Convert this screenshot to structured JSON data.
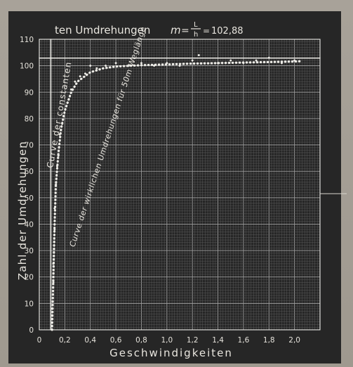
{
  "chart_data": {
    "type": "line",
    "title_prefix": "ten Umdrehungen",
    "formula": {
      "lhs": "m",
      "numerator": "L",
      "denominator": "h",
      "rhs": "102,88"
    },
    "xlabel": "Geschwindigkeiten",
    "ylabel": "Zahl der Umdrehungen",
    "xlim": [
      0,
      2.2
    ],
    "ylim": [
      0,
      110
    ],
    "grid": true,
    "x_tick_labels": [
      "0",
      "0,2",
      "0,4",
      "0,6",
      "0,8",
      "1,0",
      "1,2",
      "1,4",
      "1,6",
      "1,8",
      "2,0"
    ],
    "y_tick_labels": [
      "0",
      "10",
      "20",
      "30",
      "40",
      "50",
      "60",
      "70",
      "80",
      "90",
      "100",
      "110"
    ],
    "annotations": [
      "Curve der constanten",
      "Curve der wirklichen Umdrehungen für 50m Weglänge"
    ],
    "series": [
      {
        "x": [
          0.09,
          0.09,
          0.09
        ],
        "y": [
          0,
          60,
          110
        ]
      },
      {
        "x": [
          0.1,
          0.11,
          0.12,
          0.13,
          0.15,
          0.17,
          0.2,
          0.25,
          0.3,
          0.4,
          0.5,
          0.6,
          0.8,
          1.0,
          1.2,
          1.4,
          1.6,
          1.8,
          2.0,
          2.05
        ],
        "y": [
          0,
          20,
          40,
          55,
          67,
          76,
          83,
          90,
          94,
          97.5,
          99,
          99.7,
          100.2,
          100.5,
          100.8,
          101,
          101.2,
          101.4,
          101.6,
          101.7
        ]
      },
      {
        "x": [
          0.0,
          2.2
        ],
        "y": [
          102.88,
          102.88
        ]
      }
    ],
    "observations": {
      "x": [
        0.1,
        0.11,
        0.11,
        0.12,
        0.12,
        0.13,
        0.14,
        0.15,
        0.16,
        0.18,
        0.19,
        0.22,
        0.25,
        0.28,
        0.32,
        0.36,
        0.4,
        0.45,
        0.52,
        0.6,
        0.7,
        0.8,
        0.9,
        1.0,
        1.1,
        1.2,
        1.25,
        1.4,
        1.5,
        1.6,
        1.7,
        1.8,
        1.9,
        2.0
      ],
      "y": [
        8,
        18,
        25,
        38,
        46,
        55,
        62,
        66,
        74,
        78,
        81,
        86,
        91,
        94,
        96,
        97,
        100,
        99,
        100,
        101,
        100,
        101,
        100,
        101,
        100,
        102,
        104,
        101,
        102,
        101,
        102,
        103,
        101,
        102
      ]
    },
    "colors": {
      "background": "#262626",
      "grid_minor": "#5e5e5e",
      "grid_major": "#9c9c9c",
      "ink": "#ecebe6"
    }
  }
}
